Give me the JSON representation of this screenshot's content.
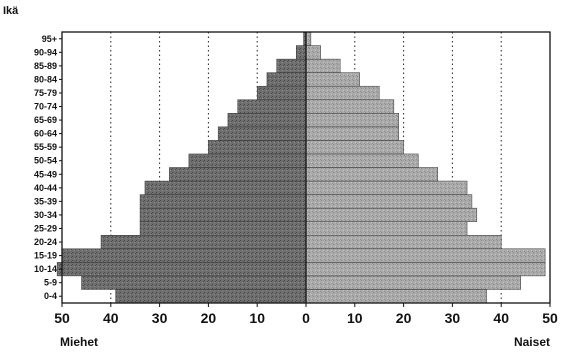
{
  "chart_data": {
    "type": "bar",
    "orientation": "horizontal",
    "layout": "population-pyramid",
    "title": "",
    "ylabel": "Ikä",
    "xlabel_left": "Miehet",
    "xlabel_right": "Naiset",
    "categories": [
      "0-4",
      "5-9",
      "10-14",
      "15-19",
      "20-24",
      "25-29",
      "30-34",
      "35-39",
      "40-44",
      "45-49",
      "50-54",
      "55-59",
      "60-64",
      "65-69",
      "70-74",
      "75-79",
      "80-84",
      "85-89",
      "90-94",
      "95+"
    ],
    "xlim": [
      -50,
      50
    ],
    "xtick_values": [
      -50,
      -40,
      -30,
      -20,
      -10,
      0,
      10,
      20,
      30,
      40,
      50
    ],
    "xtick_labels": [
      "50",
      "40",
      "30",
      "20",
      "10",
      "0",
      "10",
      "20",
      "30",
      "40",
      "50"
    ],
    "grid": "vertical dotted lines at every 10",
    "series": [
      {
        "name": "Miehet",
        "color": "#6a6a6a",
        "values": [
          39,
          46,
          51,
          50,
          42,
          34,
          34,
          34,
          33,
          28,
          24,
          20,
          18,
          16,
          14,
          10,
          8,
          6,
          2,
          0.5
        ]
      },
      {
        "name": "Naiset",
        "color": "#a9a9a9",
        "values": [
          37,
          44,
          49,
          49,
          40,
          33,
          35,
          34,
          33,
          27,
          23,
          20,
          19,
          19,
          18,
          15,
          11,
          7,
          3,
          1
        ]
      }
    ]
  }
}
